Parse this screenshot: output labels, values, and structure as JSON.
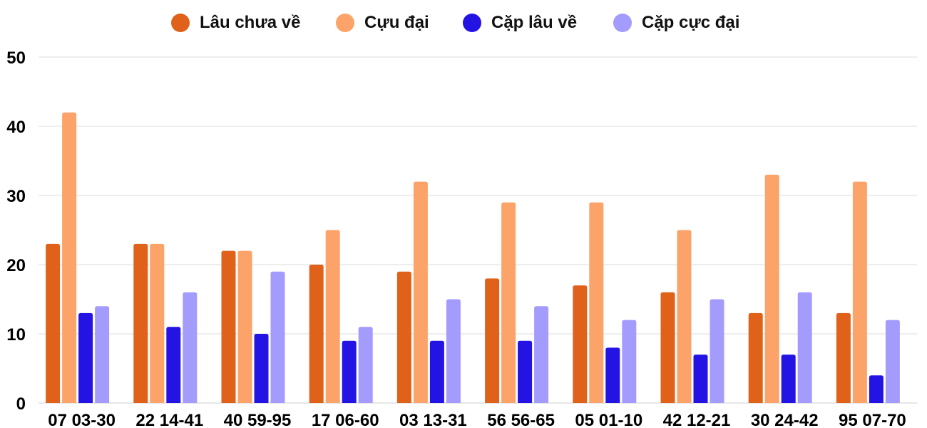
{
  "chart_data": {
    "type": "bar",
    "categories": [
      "07 03-30",
      "22 14-41",
      "40 59-95",
      "17 06-60",
      "03 13-31",
      "56 56-65",
      "05 01-10",
      "42 12-21",
      "30 24-42",
      "95 07-70"
    ],
    "series": [
      {
        "name": "Lâu chưa về",
        "color": "#e0621a",
        "values": [
          23,
          23,
          22,
          20,
          19,
          18,
          17,
          16,
          13,
          13
        ]
      },
      {
        "name": "Cựu đại",
        "color": "#fca36a",
        "values": [
          42,
          23,
          22,
          25,
          32,
          29,
          29,
          25,
          33,
          32
        ]
      },
      {
        "name": "Cặp lâu về",
        "color": "#2414e4",
        "values": [
          13,
          11,
          10,
          9,
          9,
          9,
          8,
          7,
          7,
          4
        ]
      },
      {
        "name": "Cặp cực đại",
        "color": "#a39cfd",
        "values": [
          14,
          16,
          19,
          11,
          15,
          14,
          12,
          15,
          16,
          12
        ]
      }
    ],
    "yticks": [
      "0",
      "10",
      "20",
      "30",
      "40",
      "50"
    ],
    "ylim": [
      0,
      50
    ],
    "grid": true,
    "legend": "top-center"
  }
}
